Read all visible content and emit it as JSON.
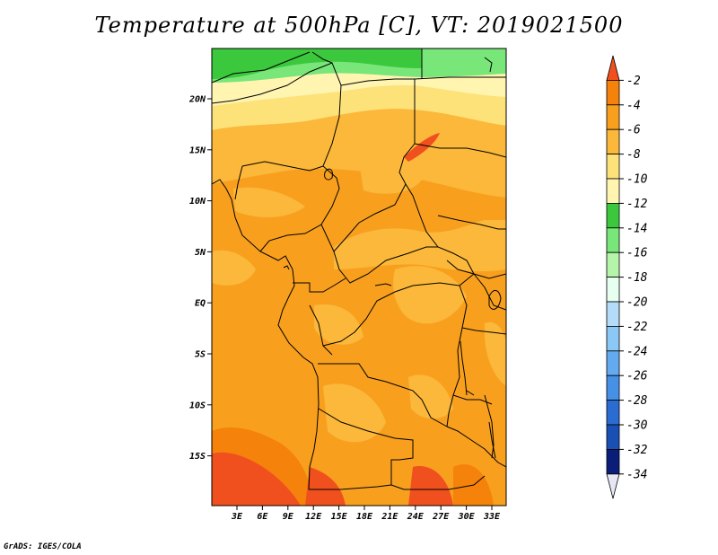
{
  "title": "Temperature at 500hPa [C], VT: 2019021500",
  "credit": "GrADS: IGES/COLA",
  "lat_labels": [
    "20N",
    "15N",
    "10N",
    "5N",
    "EQ",
    "5S",
    "10S",
    "15S"
  ],
  "lon_labels": [
    "3E",
    "6E",
    "9E",
    "12E",
    "15E",
    "18E",
    "21E",
    "24E",
    "27E",
    "30E",
    "33E"
  ],
  "colorbar": {
    "labels": [
      "-2",
      "-4",
      "-6",
      "-8",
      "-10",
      "-12",
      "-14",
      "-16",
      "-18",
      "-20",
      "-22",
      "-24",
      "-26",
      "-28",
      "-30",
      "-32",
      "-34"
    ],
    "colors": [
      "#f0501e",
      "#f5820a",
      "#f8a01e",
      "#fbb83a",
      "#fde27a",
      "#fff5b0",
      "#3cc83c",
      "#78e678",
      "#b4f5aa",
      "#e6fff0",
      "#b4dcf8",
      "#8cc8f5",
      "#64aaf0",
      "#4690e6",
      "#2a6cd2",
      "#1a50b4",
      "#0a1e78",
      "#e6e6f5"
    ]
  },
  "field_colors": {
    "warmest": "#f0501e",
    "warm": "#f5820a",
    "mid": "#f8a01e",
    "cool": "#fbb83a",
    "cooler": "#fde27a",
    "pale": "#fff5b0",
    "green": "#3cc83c",
    "lightgreen": "#78e678"
  }
}
